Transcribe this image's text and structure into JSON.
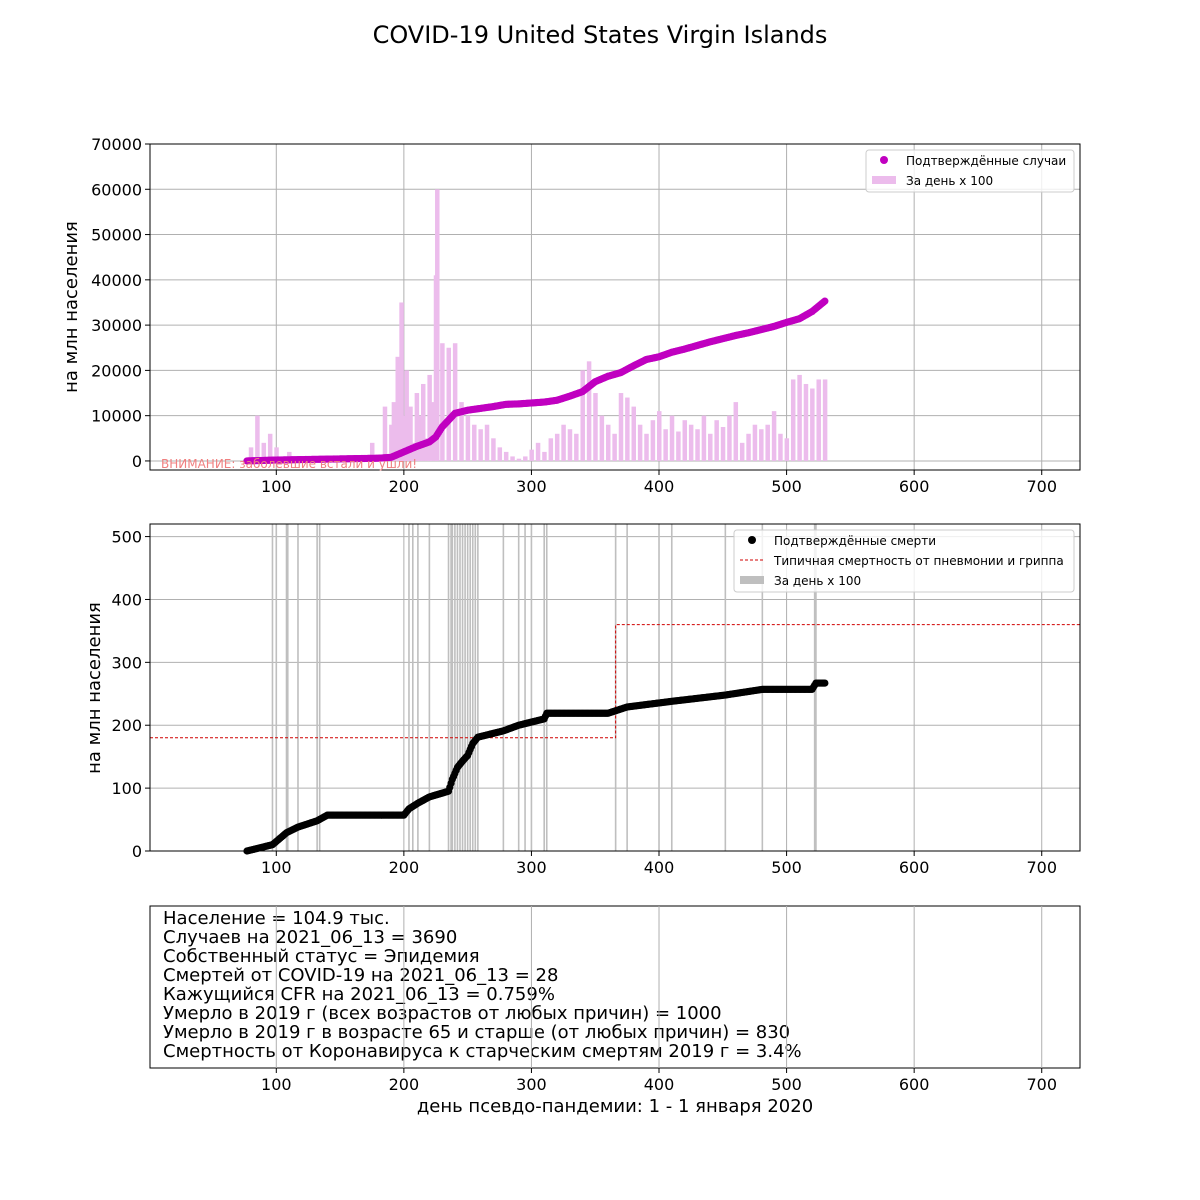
{
  "title": "COVID-19 United States Virgin Islands",
  "xlabel": "день псевдо-пандемии: 1 - 1 января 2020",
  "colors": {
    "cases": "#c000c0",
    "cases_bar": "#ecbcec",
    "deaths": "#000000",
    "deaths_bar": "#bfbfbf",
    "flu": "#d00000",
    "grid": "#b0b0b0",
    "warning": "#f08080"
  },
  "x_ticks": [
    100,
    200,
    300,
    400,
    500,
    600,
    700
  ],
  "info_lines": [
    "Население = 104.9 тыс.",
    "Случаев на 2021_06_13 = 3690",
    "Собственный статус = Эпидемия",
    "Смертей от COVID-19 на 2021_06_13 = 28",
    "Кажущийся CFR на 2021_06_13 = 0.759%",
    "Умерло в 2019 г (всех возрастов от любых причин) = 1000",
    "Умерло в 2019 г в возрасте 65 и старше (от любых причин) = 830",
    "Смертность от Коронавируса к старческим смертям 2019 г = 3.4%"
  ],
  "chart_data": [
    {
      "type": "scatter",
      "title": "",
      "ylabel": "на млн населения",
      "xlim": [
        1,
        730
      ],
      "ylim": [
        -2000,
        70000
      ],
      "y_ticks": [
        0,
        10000,
        20000,
        30000,
        40000,
        50000,
        60000,
        70000
      ],
      "grid": true,
      "legend_position": "top-right",
      "legend": [
        "Подтверждённые случаи",
        "За день x 100"
      ],
      "annotation": "ВНИМАНИЕ: заболевшие встали и ушли!",
      "series": [
        {
          "name": "Подтверждённые случаи",
          "x": [
            77,
            100,
            120,
            140,
            160,
            180,
            190,
            200,
            210,
            220,
            225,
            230,
            240,
            250,
            260,
            270,
            280,
            290,
            300,
            310,
            320,
            330,
            340,
            350,
            360,
            370,
            380,
            390,
            400,
            410,
            420,
            430,
            440,
            450,
            460,
            470,
            480,
            490,
            500,
            510,
            520,
            530
          ],
          "y": [
            0,
            200,
            300,
            400,
            500,
            600,
            800,
            2000,
            3200,
            4200,
            5300,
            7500,
            10500,
            11200,
            11600,
            12000,
            12500,
            12600,
            12800,
            13000,
            13400,
            14300,
            15300,
            17500,
            18700,
            19500,
            21000,
            22400,
            23000,
            24000,
            24700,
            25500,
            26300,
            27000,
            27700,
            28300,
            29000,
            29700,
            30600,
            31400,
            33000,
            35300
          ]
        },
        {
          "name": "За день x 100",
          "type": "bar",
          "x": [
            80,
            85,
            90,
            95,
            100,
            105,
            110,
            120,
            130,
            140,
            150,
            160,
            170,
            175,
            185,
            190,
            192,
            195,
            198,
            200,
            202,
            205,
            208,
            210,
            212,
            215,
            218,
            220,
            222,
            225,
            226,
            230,
            235,
            240,
            245,
            250,
            255,
            260,
            265,
            270,
            275,
            280,
            285,
            290,
            295,
            300,
            305,
            310,
            315,
            320,
            325,
            330,
            335,
            340,
            345,
            350,
            355,
            360,
            365,
            370,
            375,
            380,
            385,
            390,
            395,
            400,
            405,
            410,
            415,
            420,
            425,
            430,
            435,
            440,
            445,
            450,
            455,
            460,
            465,
            470,
            475,
            480,
            485,
            490,
            495,
            500,
            505,
            510,
            515,
            520,
            525,
            530
          ],
          "y": [
            3000,
            10000,
            4000,
            6000,
            3000,
            1000,
            2000,
            1000,
            500,
            600,
            800,
            1000,
            1200,
            4000,
            12000,
            8000,
            13000,
            23000,
            35000,
            10000,
            20000,
            12000,
            4000,
            15000,
            10000,
            17000,
            5000,
            19000,
            13000,
            41000,
            60000,
            26000,
            25000,
            26000,
            13000,
            10000,
            8000,
            7000,
            8000,
            5000,
            3000,
            2000,
            1000,
            500,
            1000,
            2500,
            4000,
            2000,
            5000,
            6000,
            8000,
            7000,
            6000,
            20000,
            22000,
            15000,
            10000,
            8000,
            6000,
            15000,
            14000,
            12000,
            8000,
            6000,
            9000,
            11000,
            7000,
            10000,
            6500,
            9000,
            8000,
            7000,
            10000,
            6000,
            9000,
            7500,
            10000,
            13000,
            4000,
            6000,
            8000,
            7000,
            8000,
            11000,
            6000,
            5000,
            18000,
            19000,
            17000,
            16000,
            18000,
            18000
          ]
        }
      ]
    },
    {
      "type": "scatter",
      "title": "",
      "ylabel": "на млн населения",
      "xlim": [
        1,
        730
      ],
      "ylim": [
        0,
        520
      ],
      "y_ticks": [
        0,
        100,
        200,
        300,
        400,
        500
      ],
      "grid": true,
      "legend_position": "top-right",
      "legend": [
        "Подтверждённые смерти",
        "Типичная смертность от пневмонии и гриппа",
        "За день x 100"
      ],
      "series": [
        {
          "name": "Подтверждённые смерти",
          "x": [
            77,
            97,
            108,
            117,
            132,
            140,
            180,
            200,
            204,
            211,
            220,
            235,
            238,
            242,
            246,
            250,
            254,
            258,
            278,
            290,
            310,
            312,
            320,
            360,
            375,
            410,
            452,
            481,
            520,
            523,
            530
          ],
          "y": [
            0,
            10,
            29,
            38,
            48,
            57,
            57,
            57,
            67,
            76,
            86,
            95,
            114,
            133,
            143,
            152,
            171,
            181,
            191,
            200,
            210,
            219,
            219,
            219,
            229,
            238,
            248,
            257,
            257,
            267,
            267
          ]
        },
        {
          "name": "Типичная смертность от пневмонии и гриппа",
          "x": [
            1,
            366,
            366,
            730
          ],
          "y": [
            180,
            180,
            360,
            360
          ]
        },
        {
          "name": "За день x 100",
          "type": "bar",
          "x": [
            97,
            100,
            108,
            109,
            117,
            132,
            134,
            204,
            207,
            211,
            220,
            235,
            237,
            238,
            240,
            242,
            244,
            246,
            248,
            250,
            252,
            254,
            256,
            258,
            278,
            290,
            295,
            300,
            310,
            312,
            366,
            375,
            400,
            410,
            452,
            481,
            522,
            523
          ],
          "y": [
            1000,
            1000,
            2000,
            2000,
            1000,
            1000,
            1000,
            1000,
            1000,
            1000,
            1000,
            1000,
            2000,
            2000,
            1000,
            2000,
            1000,
            1000,
            1000,
            1000,
            2000,
            1000,
            1000,
            1000,
            1000,
            1000,
            1000,
            1000,
            1000,
            1000,
            1000,
            1000,
            1000,
            1000,
            1000,
            1000,
            1000,
            1000
          ]
        }
      ]
    }
  ]
}
